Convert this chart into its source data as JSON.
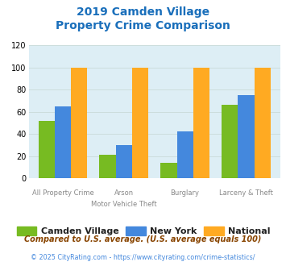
{
  "title_line1": "2019 Camden Village",
  "title_line2": "Property Crime Comparison",
  "title_color": "#1a6fbb",
  "top_labels": [
    "All Property Crime",
    "Arson",
    "Burglary",
    "Larceny & Theft"
  ],
  "bot_labels": [
    "",
    "Motor Vehicle Theft",
    "",
    ""
  ],
  "camden_values": [
    52,
    21,
    14,
    66
  ],
  "newyork_values": [
    65,
    30,
    42,
    75
  ],
  "national_values": [
    100,
    100,
    100,
    100
  ],
  "camden_color": "#77bb22",
  "newyork_color": "#4488dd",
  "national_color": "#ffaa22",
  "ylim": [
    0,
    120
  ],
  "yticks": [
    0,
    20,
    40,
    60,
    80,
    100,
    120
  ],
  "grid_color": "#ccdddd",
  "bg_color": "#ddeef5",
  "legend_labels": [
    "Camden Village",
    "New York",
    "National"
  ],
  "footnote1": "Compared to U.S. average. (U.S. average equals 100)",
  "footnote2": "© 2025 CityRating.com - https://www.cityrating.com/crime-statistics/",
  "footnote1_color": "#884400",
  "footnote2_color": "#4488dd",
  "footnote2_prefix_color": "#888888"
}
